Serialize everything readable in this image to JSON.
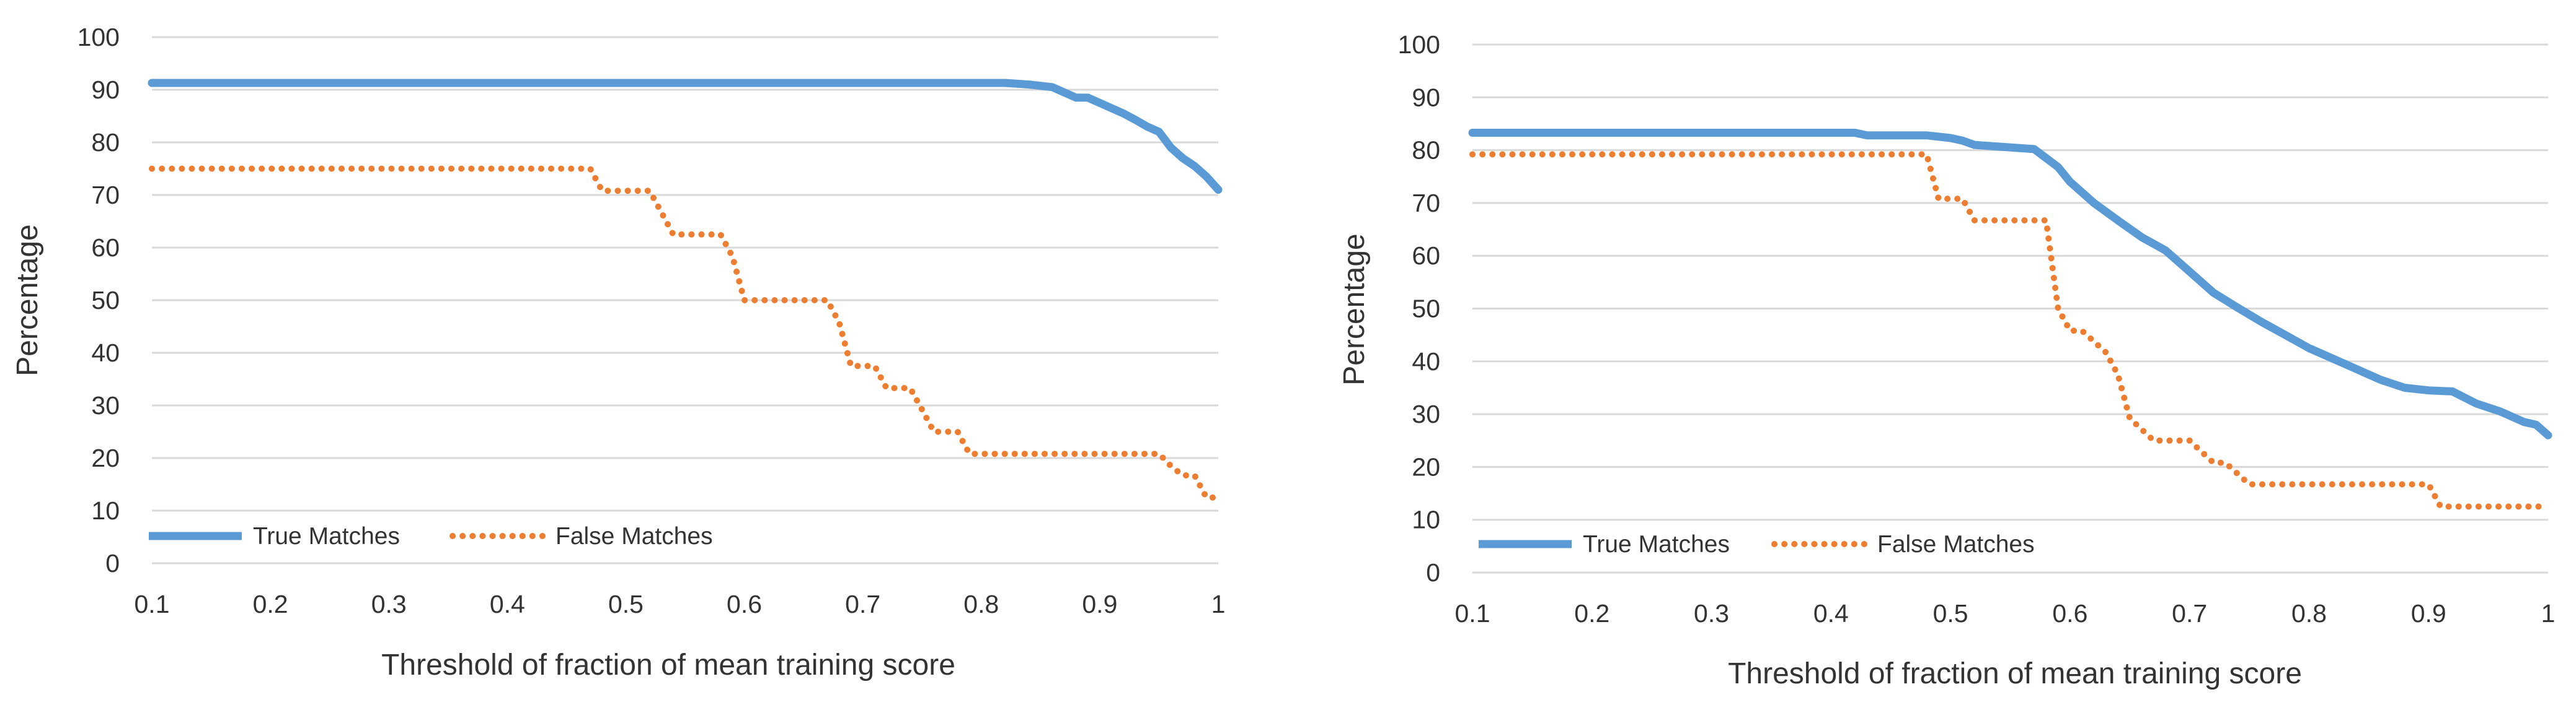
{
  "colors": {
    "true_matches": "#5B9BD5",
    "false_matches": "#ED7D31",
    "grid": "#D9D9D9",
    "text": "#333333"
  },
  "chart_data": [
    {
      "type": "line",
      "title": "",
      "xlabel": "Threshold of fraction of mean training score",
      "ylabel": "Percentage",
      "xlim": [
        0.1,
        1
      ],
      "ylim": [
        0,
        100
      ],
      "x_ticks": [
        "0.1",
        "0.2",
        "0.3",
        "0.4",
        "0.5",
        "0.6",
        "0.7",
        "0.8",
        "0.9",
        "1"
      ],
      "y_ticks": [
        "0",
        "10",
        "20",
        "30",
        "40",
        "50",
        "60",
        "70",
        "80",
        "90",
        "100"
      ],
      "grid": "horizontal",
      "legend_position": "bottom-left",
      "series": [
        {
          "name": "True Matches",
          "style": "solid",
          "x": [
            0.1,
            0.82,
            0.84,
            0.86,
            0.87,
            0.88,
            0.89,
            0.9,
            0.91,
            0.92,
            0.93,
            0.94,
            0.95,
            0.96,
            0.97,
            0.98,
            0.99,
            1.0
          ],
          "y": [
            91.3,
            91.3,
            91,
            90.5,
            89.5,
            88.5,
            88.5,
            87.5,
            86.5,
            85.5,
            84.3,
            83,
            82,
            79,
            77,
            75.5,
            73.5,
            71
          ]
        },
        {
          "name": "False Matches",
          "style": "dotted",
          "x": [
            0.1,
            0.47,
            0.48,
            0.52,
            0.53,
            0.54,
            0.58,
            0.59,
            0.6,
            0.67,
            0.68,
            0.69,
            0.71,
            0.72,
            0.74,
            0.75,
            0.76,
            0.78,
            0.79,
            0.8,
            0.95,
            0.96,
            0.97,
            0.98,
            0.99,
            1.0
          ],
          "y": [
            75,
            75,
            70.8,
            70.8,
            66.7,
            62.5,
            62.5,
            58.3,
            50,
            50,
            45.8,
            37.5,
            37.5,
            33.3,
            33.3,
            29.2,
            25,
            25,
            20.8,
            20.8,
            20.8,
            18.5,
            16.7,
            16.7,
            12.5,
            12.5
          ]
        }
      ]
    },
    {
      "type": "line",
      "title": "",
      "xlabel": "Threshold of fraction of mean training score",
      "ylabel": "Percentage",
      "xlim": [
        0.1,
        1
      ],
      "ylim": [
        0,
        100
      ],
      "x_ticks": [
        "0.1",
        "0.2",
        "0.3",
        "0.4",
        "0.5",
        "0.6",
        "0.7",
        "0.8",
        "0.9",
        "1"
      ],
      "y_ticks": [
        "0",
        "10",
        "20",
        "30",
        "40",
        "50",
        "60",
        "70",
        "80",
        "90",
        "100"
      ],
      "grid": "horizontal",
      "legend_position": "bottom-left",
      "series": [
        {
          "name": "True Matches",
          "style": "solid",
          "x": [
            0.1,
            0.42,
            0.43,
            0.48,
            0.5,
            0.51,
            0.52,
            0.57,
            0.58,
            0.59,
            0.6,
            0.62,
            0.64,
            0.66,
            0.68,
            0.7,
            0.72,
            0.74,
            0.76,
            0.78,
            0.8,
            0.82,
            0.84,
            0.86,
            0.88,
            0.9,
            0.92,
            0.94,
            0.96,
            0.98,
            0.99,
            1.0
          ],
          "y": [
            83.3,
            83.3,
            82.8,
            82.8,
            82.3,
            81.8,
            81,
            80.2,
            78.5,
            76.8,
            74,
            70,
            66.7,
            63.5,
            61,
            57,
            53,
            50.2,
            47.5,
            45,
            42.5,
            40.5,
            38.5,
            36.5,
            35,
            34.5,
            34.3,
            32,
            30.5,
            28.5,
            28,
            26
          ]
        },
        {
          "name": "False Matches",
          "style": "dotted",
          "x": [
            0.1,
            0.48,
            0.49,
            0.51,
            0.52,
            0.58,
            0.59,
            0.6,
            0.61,
            0.63,
            0.64,
            0.65,
            0.67,
            0.68,
            0.7,
            0.72,
            0.73,
            0.75,
            0.76,
            0.9,
            0.91,
            1.0
          ],
          "y": [
            79.2,
            79.2,
            70.8,
            70.8,
            66.7,
            66.7,
            50,
            45.8,
            45.8,
            41.7,
            37.5,
            29.2,
            25,
            25,
            25,
            20.8,
            20.8,
            16.7,
            16.7,
            16.7,
            12.5,
            12.5
          ]
        }
      ]
    }
  ]
}
